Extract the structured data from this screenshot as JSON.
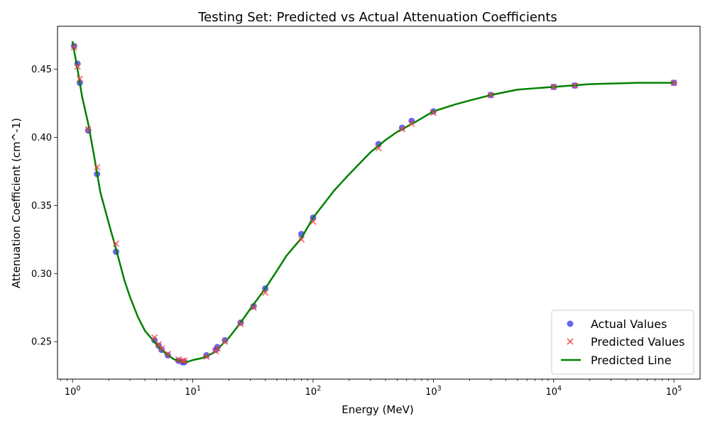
{
  "chart_data": {
    "type": "scatter",
    "title": "Testing Set: Predicted vs Actual Attenuation Coefficients",
    "xlabel": "Energy (MeV)",
    "ylabel": "Attenuation Coefficient (cm^-1)",
    "x_scale": "log",
    "xlim": [
      0.75,
      165000
    ],
    "ylim": [
      0.2225,
      0.4815
    ],
    "x_ticks": [
      {
        "value": 1,
        "base": "10",
        "exp": "0"
      },
      {
        "value": 10,
        "base": "10",
        "exp": "1"
      },
      {
        "value": 100,
        "base": "10",
        "exp": "2"
      },
      {
        "value": 1000,
        "base": "10",
        "exp": "3"
      },
      {
        "value": 10000,
        "base": "10",
        "exp": "4"
      },
      {
        "value": 100000,
        "base": "10",
        "exp": "5"
      }
    ],
    "y_ticks": [
      {
        "value": 0.25,
        "label": "0.25"
      },
      {
        "value": 0.3,
        "label": "0.30"
      },
      {
        "value": 0.35,
        "label": "0.35"
      },
      {
        "value": 0.4,
        "label": "0.40"
      },
      {
        "value": 0.45,
        "label": "0.45"
      }
    ],
    "grid": false,
    "legend_position": "bottom-right",
    "series": [
      {
        "name": "Actual Values",
        "kind": "scatter-circle",
        "color": "#3333ee",
        "x": [
          1.03,
          1.1,
          1.15,
          1.35,
          1.6,
          2.3,
          4.8,
          5.2,
          5.5,
          6.2,
          7.6,
          8.2,
          8.5,
          13.0,
          15.5,
          16.0,
          18.5,
          25.0,
          32.0,
          40.0,
          80.0,
          100,
          350,
          550,
          660,
          1000,
          3000,
          10000,
          15000,
          100000
        ],
        "y": [
          0.467,
          0.454,
          0.44,
          0.405,
          0.373,
          0.316,
          0.251,
          0.247,
          0.244,
          0.24,
          0.236,
          0.235,
          0.235,
          0.24,
          0.244,
          0.246,
          0.251,
          0.264,
          0.276,
          0.289,
          0.329,
          0.341,
          0.395,
          0.407,
          0.412,
          0.419,
          0.431,
          0.437,
          0.438,
          0.44
        ]
      },
      {
        "name": "Predicted Values",
        "kind": "scatter-x",
        "color": "#ee4444",
        "x": [
          1.03,
          1.1,
          1.15,
          1.35,
          1.6,
          2.3,
          4.8,
          5.2,
          5.5,
          6.2,
          7.6,
          8.2,
          8.5,
          13.0,
          15.5,
          16.0,
          18.5,
          25.0,
          32.0,
          40.0,
          80.0,
          100,
          350,
          550,
          660,
          1000,
          3000,
          10000,
          15000,
          100000
        ],
        "y": [
          0.466,
          0.452,
          0.443,
          0.406,
          0.378,
          0.322,
          0.253,
          0.248,
          0.245,
          0.241,
          0.237,
          0.236,
          0.236,
          0.239,
          0.243,
          0.245,
          0.25,
          0.263,
          0.275,
          0.286,
          0.325,
          0.338,
          0.392,
          0.406,
          0.41,
          0.418,
          0.431,
          0.437,
          0.438,
          0.44
        ]
      },
      {
        "name": "Predicted Line",
        "kind": "line",
        "color": "#008000",
        "x": [
          1.0,
          1.1,
          1.2,
          1.35,
          1.5,
          1.7,
          2.0,
          2.3,
          2.7,
          3.0,
          3.5,
          4.0,
          5.0,
          6.0,
          7.0,
          8.0,
          9.0,
          10,
          12,
          15,
          20,
          25,
          30,
          40,
          50,
          60,
          70,
          80,
          100,
          150,
          200,
          300,
          400,
          500,
          700,
          1000,
          1500,
          2000,
          3000,
          5000,
          7000,
          10000,
          20000,
          50000,
          100000
        ],
        "y": [
          0.47,
          0.45,
          0.43,
          0.41,
          0.388,
          0.36,
          0.337,
          0.318,
          0.295,
          0.283,
          0.268,
          0.258,
          0.248,
          0.241,
          0.237,
          0.2355,
          0.2352,
          0.2365,
          0.238,
          0.242,
          0.253,
          0.264,
          0.274,
          0.289,
          0.302,
          0.313,
          0.32,
          0.326,
          0.341,
          0.361,
          0.373,
          0.389,
          0.398,
          0.404,
          0.411,
          0.419,
          0.424,
          0.427,
          0.431,
          0.435,
          0.436,
          0.437,
          0.439,
          0.44,
          0.44
        ]
      }
    ]
  }
}
